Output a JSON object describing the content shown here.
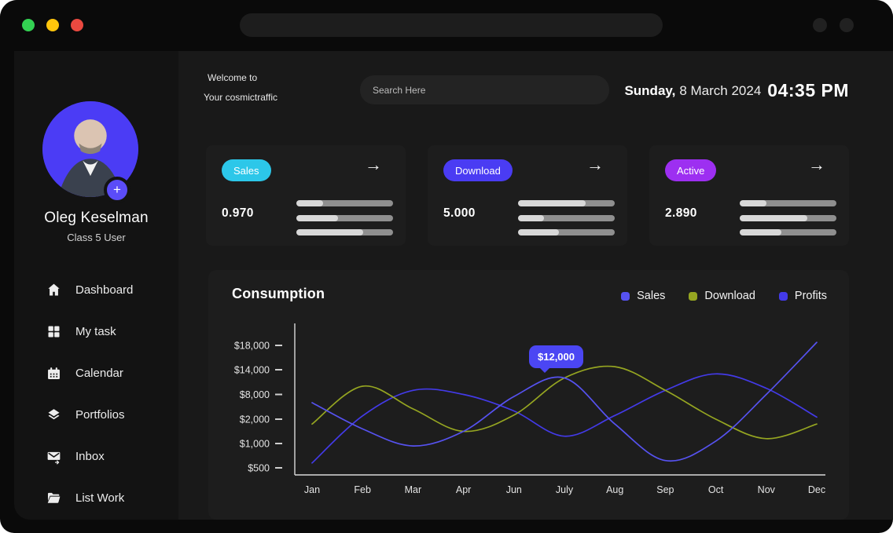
{
  "ui": {
    "arrow_glyph": "→",
    "plus_glyph": "+"
  },
  "window": {
    "traffic_lights": [
      {
        "name": "green",
        "color": "#33d152"
      },
      {
        "name": "yellow",
        "color": "#ffc50c"
      },
      {
        "name": "red",
        "color": "#ea4940"
      }
    ]
  },
  "sidebar": {
    "profile": {
      "name": "Oleg Keselman",
      "role": "Class 5 User",
      "avatar_bg": "#4b3cf5"
    },
    "nav": [
      {
        "icon": "home-icon",
        "label": "Dashboard"
      },
      {
        "icon": "grid-icon",
        "label": "My task"
      },
      {
        "icon": "calendar-icon",
        "label": "Calendar"
      },
      {
        "icon": "layers-icon",
        "label": "Portfolios"
      },
      {
        "icon": "inbox-icon",
        "label": "Inbox"
      },
      {
        "icon": "folder-icon",
        "label": "List Work"
      }
    ]
  },
  "header": {
    "welcome_line1": "Welcome to",
    "welcome_line2": "Your cosmictraffic",
    "search_placeholder": "Search Here",
    "datetime": {
      "day": "Sunday,",
      "date": "8 March 2024",
      "time": "04:35 PM"
    }
  },
  "stats": [
    {
      "badge": "Sales",
      "badge_color": "#2cc7e9",
      "value": "0.970",
      "bars_pct": [
        28,
        43,
        69
      ]
    },
    {
      "badge": "Download",
      "badge_color": "#4a3cf3",
      "value": "5.000",
      "bars_pct": [
        70,
        27,
        42
      ]
    },
    {
      "badge": "Active",
      "badge_color": "#9d2ff1",
      "value": "2.890",
      "bars_pct": [
        28,
        70,
        43
      ]
    }
  ],
  "chart_data": {
    "type": "line",
    "title": "Consumption",
    "categories": [
      "Jan",
      "Feb",
      "Mar",
      "Apr",
      "Jun",
      "July",
      "Aug",
      "Sep",
      "Oct",
      "Nov",
      "Dec"
    ],
    "y_tick_labels": [
      "$18,000",
      "$14,000",
      "$8,000",
      "$2,000",
      "$1,000",
      "$500"
    ],
    "y_tick_values": [
      18000,
      14000,
      8000,
      2000,
      1000,
      500
    ],
    "y_axis_note": "ticks evenly spaced (non-linear value scale)",
    "grid": false,
    "legend_position": "top-right",
    "series": [
      {
        "name": "Sales",
        "color": "#5652f0",
        "values": [
          6000,
          1600,
          950,
          1500,
          7500,
          12000,
          1800,
          650,
          1100,
          8000,
          18500
        ]
      },
      {
        "name": "Download",
        "color": "#95a521",
        "values": [
          1800,
          10000,
          4500,
          1500,
          3000,
          12000,
          14500,
          9000,
          2000,
          1200,
          1800
        ]
      },
      {
        "name": "Profits",
        "color": "#433ae8",
        "values": [
          600,
          2800,
          9000,
          8000,
          4000,
          1300,
          2900,
          9000,
          13000,
          9500,
          2500
        ]
      }
    ],
    "tooltip": {
      "text": "$12,000",
      "series": "Sales",
      "category": "July"
    }
  }
}
